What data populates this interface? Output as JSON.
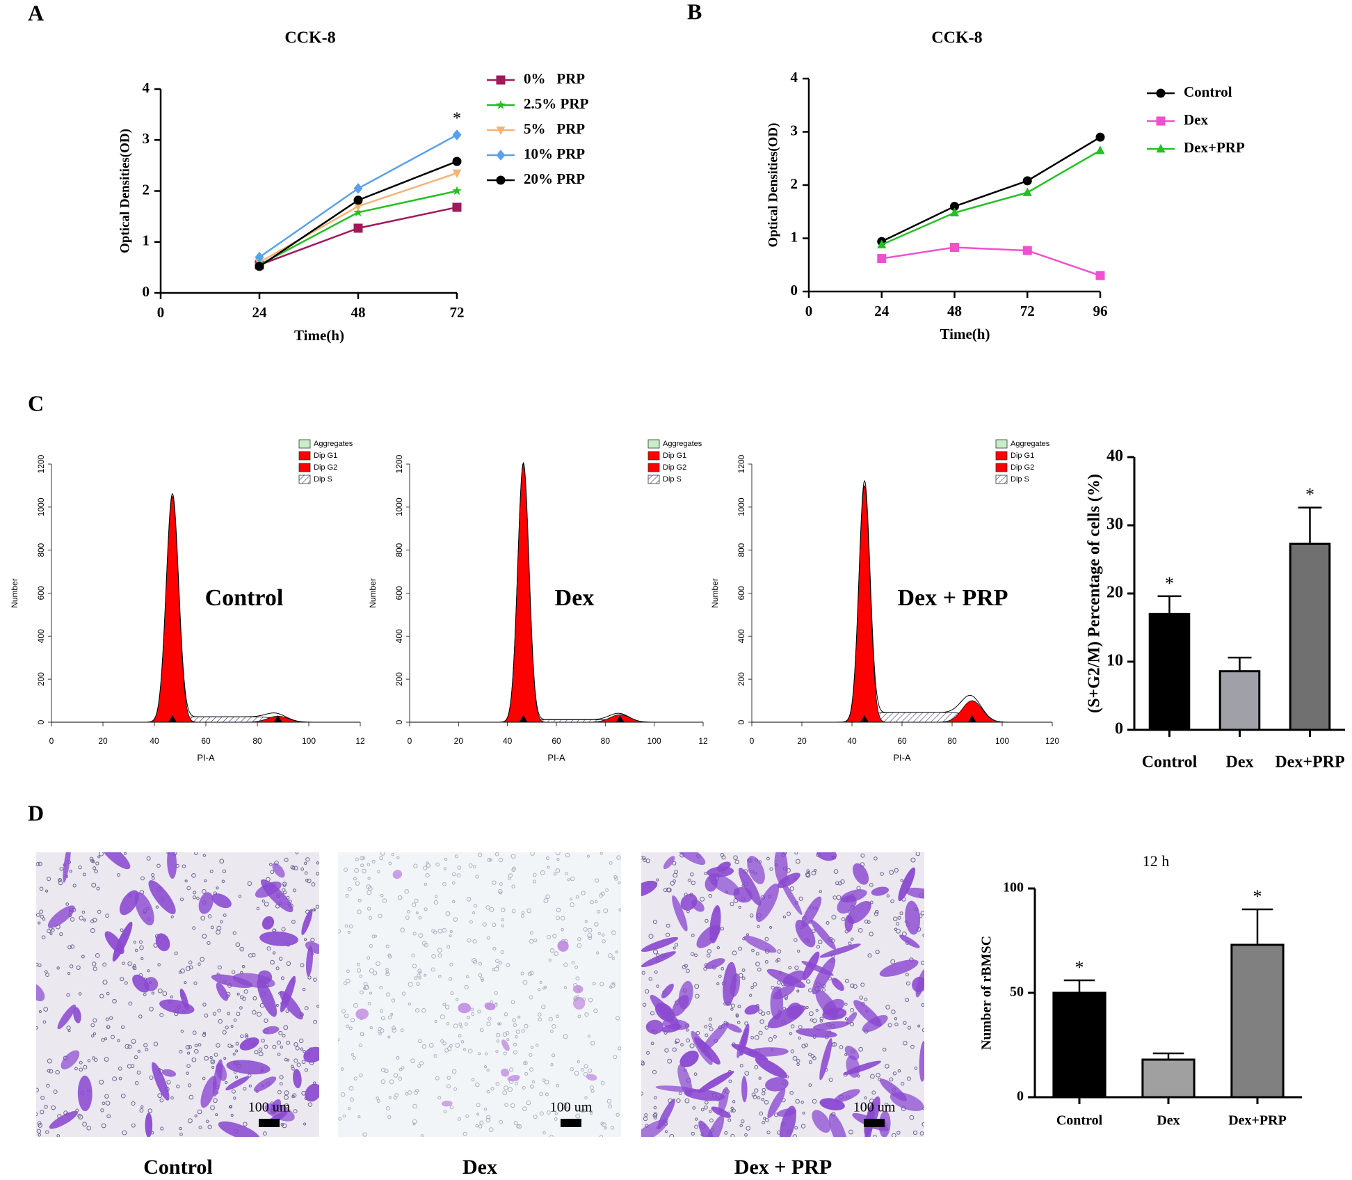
{
  "panel_labels": [
    "A",
    "B",
    "C",
    "D"
  ],
  "chart_data": [
    {
      "type": "line",
      "title": "CCK-8",
      "xlabel": "Time(h)",
      "ylabel": "Optical Densities(OD)",
      "x": [
        24,
        48,
        72
      ],
      "xlim": [
        0,
        72
      ],
      "xticks": [
        0,
        24,
        48,
        72
      ],
      "ylim": [
        0,
        4
      ],
      "yticks": [
        0,
        1,
        2,
        3,
        4
      ],
      "series": [
        {
          "name": "0%   PRP",
          "color": "#a0195a",
          "marker": "square",
          "values": [
            0.55,
            1.27,
            1.68
          ]
        },
        {
          "name": "2.5% PRP",
          "color": "#22c022",
          "marker": "star",
          "values": [
            0.55,
            1.58,
            2.0
          ]
        },
        {
          "name": "5%   PRP",
          "color": "#f5b375",
          "marker": "triangle-down",
          "values": [
            0.6,
            1.7,
            2.35
          ]
        },
        {
          "name": "10% PRP",
          "color": "#5aa0ec",
          "marker": "diamond",
          "values": [
            0.7,
            2.05,
            3.1
          ],
          "annotation": "*"
        },
        {
          "name": "20% PRP",
          "color": "#000000",
          "marker": "circle",
          "values": [
            0.52,
            1.82,
            2.58
          ]
        }
      ]
    },
    {
      "type": "line",
      "title": "CCK-8",
      "xlabel": "Time(h)",
      "ylabel": "Optical Densities(OD)",
      "x": [
        24,
        48,
        72,
        96
      ],
      "xlim": [
        0,
        96
      ],
      "xticks": [
        0,
        24,
        48,
        72,
        96
      ],
      "ylim": [
        0,
        4
      ],
      "yticks": [
        0,
        1,
        2,
        3,
        4
      ],
      "series": [
        {
          "name": "Control",
          "color": "#000000",
          "marker": "circle",
          "values": [
            0.94,
            1.6,
            2.08,
            2.9
          ]
        },
        {
          "name": "Dex",
          "color": "#f050d0",
          "marker": "square",
          "values": [
            0.62,
            0.83,
            0.77,
            0.3
          ]
        },
        {
          "name": "Dex+PRP",
          "color": "#22c022",
          "marker": "triangle",
          "values": [
            0.88,
            1.48,
            1.86,
            2.65
          ]
        }
      ]
    },
    {
      "type": "flow",
      "label": "Control",
      "xlabel": "PI-A",
      "ylabel": "Number",
      "xlim": [
        0,
        120
      ],
      "xticks": [
        0,
        20,
        40,
        60,
        80,
        100,
        {
          "value": 120,
          "label": "12"
        }
      ],
      "ylim": [
        0,
        1200
      ],
      "yticks": [
        0,
        200,
        400,
        600,
        800,
        1000,
        1200
      ],
      "series": [
        {
          "name": "Aggregates",
          "color": "#c8eec8"
        },
        {
          "name": "Dip G1",
          "color": "#ff0000",
          "peak": 47,
          "height": 1050,
          "sd": 2.4
        },
        {
          "name": "Dip G2",
          "color": "#ff0000",
          "peak": 88,
          "height": 28,
          "sd": 4
        },
        {
          "name": "Dip S",
          "pattern": "hatch",
          "height": 25
        }
      ]
    },
    {
      "type": "flow",
      "label": "Dex",
      "xlabel": "PI-A",
      "ylabel": "Number",
      "xlim": [
        0,
        120
      ],
      "xticks": [
        0,
        20,
        40,
        60,
        80,
        100,
        {
          "value": 120,
          "label": "12"
        }
      ],
      "ylim": [
        0,
        1200
      ],
      "yticks": [
        0,
        200,
        400,
        600,
        800,
        1000,
        1200
      ],
      "series": [
        {
          "name": "Aggregates",
          "color": "#c8eec8"
        },
        {
          "name": "Dip G1",
          "color": "#ff0000",
          "peak": 46.5,
          "height": 1200,
          "sd": 2.3
        },
        {
          "name": "Dip G2",
          "color": "#ff0000",
          "peak": 86,
          "height": 35,
          "sd": 4
        },
        {
          "name": "Dip S",
          "pattern": "hatch",
          "height": 12
        }
      ]
    },
    {
      "type": "flow",
      "label": "Dex + PRP",
      "xlabel": "PI-A",
      "ylabel": "Number",
      "xlim": [
        0,
        120
      ],
      "xticks": [
        0,
        20,
        40,
        60,
        80,
        100,
        120
      ],
      "ylim": [
        0,
        1200
      ],
      "yticks": [
        0,
        200,
        400,
        600,
        800,
        1000,
        1200
      ],
      "series": [
        {
          "name": "Aggregates",
          "color": "#c8eec8"
        },
        {
          "name": "Dip G1",
          "color": "#ff0000",
          "peak": 45,
          "height": 1100,
          "sd": 2.2
        },
        {
          "name": "Dip G2",
          "color": "#ff0000",
          "peak": 88,
          "height": 100,
          "sd": 4
        },
        {
          "name": "Dip S",
          "pattern": "hatch",
          "height": 45
        }
      ]
    },
    {
      "type": "bar",
      "ylabel": "(S+G2/M) Percentage of cells (%)",
      "categories": [
        "Control",
        "Dex",
        "Dex+PRP"
      ],
      "values": [
        17,
        8.6,
        27.3
      ],
      "errors": [
        2.6,
        2.0,
        5.3
      ],
      "colors": [
        "#000000",
        "#a0a0a8",
        "#707070"
      ],
      "annotations": [
        "*",
        null,
        "*"
      ],
      "ylim": [
        0,
        40
      ],
      "yticks": [
        0,
        10,
        20,
        30,
        40
      ]
    },
    {
      "type": "bar",
      "title": "12 h",
      "ylabel": "Number of rBMSC",
      "categories": [
        "Control",
        "Dex",
        "Dex+PRP"
      ],
      "values": [
        50,
        18,
        73
      ],
      "errors": [
        6,
        3,
        17
      ],
      "colors": [
        "#000000",
        "#a0a0a0",
        "#808080"
      ],
      "annotations": [
        "*",
        null,
        "*"
      ],
      "ylim": [
        0,
        100
      ],
      "yticks": [
        0,
        50,
        100
      ]
    }
  ],
  "micrographs": [
    {
      "caption": "Control",
      "scale_bar": "100 um"
    },
    {
      "caption": "Dex",
      "scale_bar": "100 um"
    },
    {
      "caption": "Dex + PRP",
      "scale_bar": "100 um"
    }
  ]
}
